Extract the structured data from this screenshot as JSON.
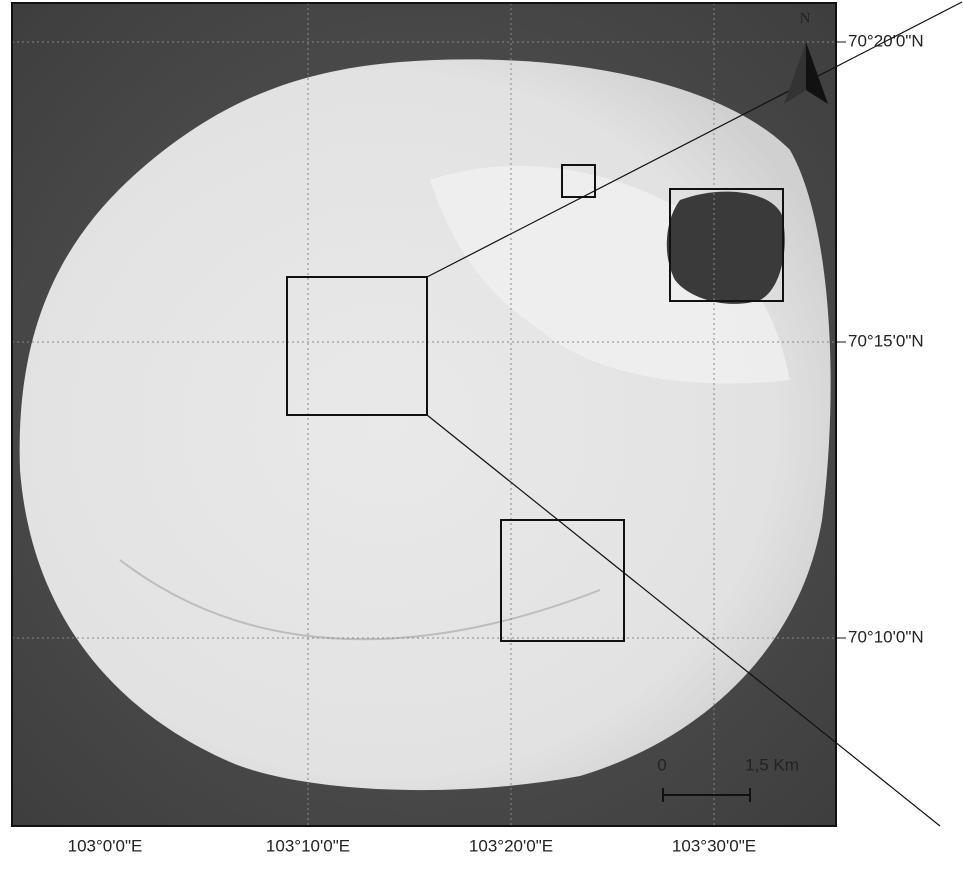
{
  "map": {
    "north_label": "N",
    "latitude_labels": [
      "70°20'0\"N",
      "70°15'0\"N",
      "70°10'0\"N"
    ],
    "longitude_labels": [
      "103°0'0\"E",
      "103°10'0\"E",
      "103°20'0\"E",
      "103°30'0\"E"
    ],
    "scale_bar": {
      "start_label": "0",
      "end_label": "1,5 Km"
    }
  }
}
